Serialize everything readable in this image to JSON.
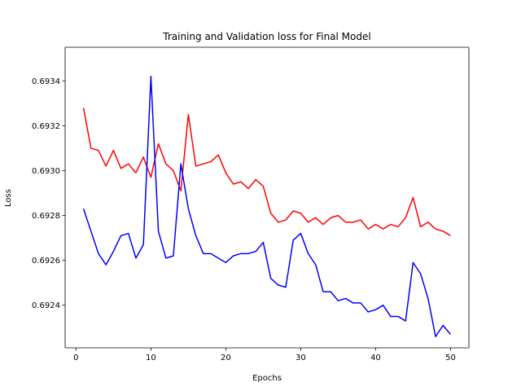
{
  "chart_data": {
    "type": "line",
    "title": "Training and Validation loss for Final Model",
    "xlabel": "Epochs",
    "ylabel": "Loss",
    "xlim": [
      -1.45,
      52.45
    ],
    "ylim": [
      0.69221,
      0.69355
    ],
    "xticks": [
      0,
      10,
      20,
      30,
      40,
      50
    ],
    "xtick_labels": [
      "0",
      "10",
      "20",
      "30",
      "40",
      "50"
    ],
    "yticks": [
      0.6924,
      0.6926,
      0.6928,
      0.693,
      0.6932,
      0.6934
    ],
    "ytick_labels": [
      "0.6924",
      "0.6926",
      "0.6928",
      "0.6930",
      "0.6932",
      "0.6934"
    ],
    "grid": false,
    "x": [
      1,
      2,
      3,
      4,
      5,
      6,
      7,
      8,
      9,
      10,
      11,
      12,
      13,
      14,
      15,
      16,
      17,
      18,
      19,
      20,
      21,
      22,
      23,
      24,
      25,
      26,
      27,
      28,
      29,
      30,
      31,
      32,
      33,
      34,
      35,
      36,
      37,
      38,
      39,
      40,
      41,
      42,
      43,
      44,
      45,
      46,
      47,
      48,
      49,
      50
    ],
    "series": [
      {
        "color": "#ff0000",
        "values": [
          0.69328,
          0.6931,
          0.69309,
          0.69302,
          0.69309,
          0.69301,
          0.69303,
          0.69299,
          0.69306,
          0.69297,
          0.69312,
          0.69303,
          0.693,
          0.69291,
          0.69325,
          0.69302,
          0.69303,
          0.69304,
          0.69307,
          0.69299,
          0.69294,
          0.69295,
          0.69292,
          0.69296,
          0.69293,
          0.69281,
          0.69277,
          0.69278,
          0.69282,
          0.69281,
          0.69277,
          0.69279,
          0.69276,
          0.69279,
          0.6928,
          0.69277,
          0.69277,
          0.69278,
          0.69274,
          0.69276,
          0.69274,
          0.69276,
          0.69275,
          0.69279,
          0.69288,
          0.69275,
          0.69277,
          0.69274,
          0.69273,
          0.69271
        ]
      },
      {
        "color": "#0000ff",
        "values": [
          0.69283,
          0.69273,
          0.69263,
          0.69258,
          0.69264,
          0.69271,
          0.69272,
          0.69261,
          0.69267,
          0.69342,
          0.69273,
          0.69261,
          0.69262,
          0.69303,
          0.69283,
          0.69271,
          0.69263,
          0.69263,
          0.69261,
          0.69259,
          0.69262,
          0.69263,
          0.69263,
          0.69264,
          0.69268,
          0.69252,
          0.69249,
          0.69248,
          0.69269,
          0.69272,
          0.69263,
          0.69258,
          0.69246,
          0.69246,
          0.69242,
          0.69243,
          0.69241,
          0.69241,
          0.69237,
          0.69238,
          0.6924,
          0.69235,
          0.69235,
          0.69233,
          0.69259,
          0.69254,
          0.69243,
          0.69226,
          0.69231,
          0.69227
        ]
      }
    ]
  }
}
